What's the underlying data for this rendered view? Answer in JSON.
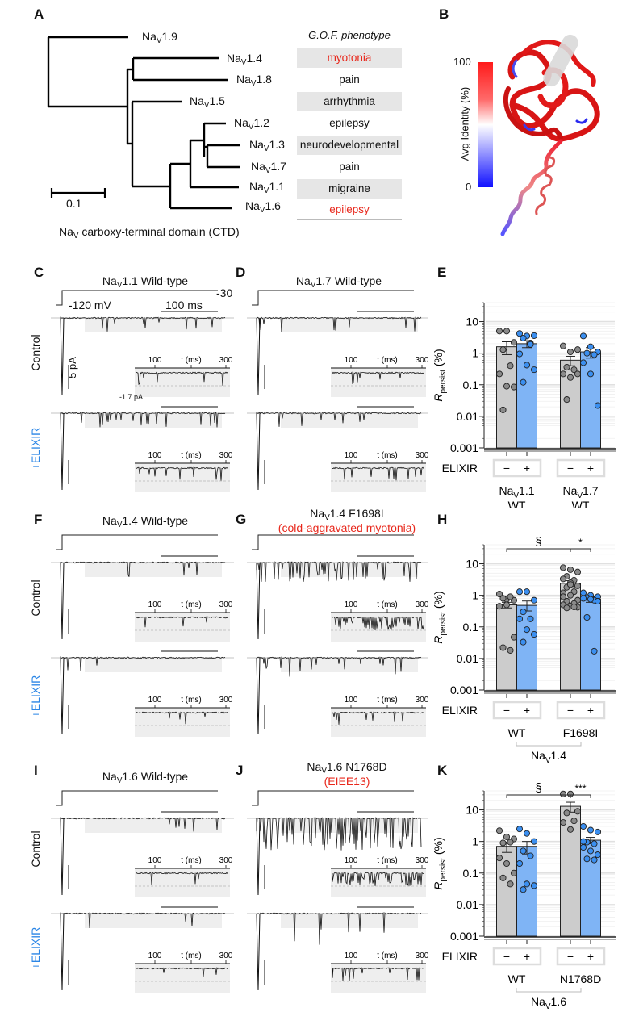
{
  "panel_labels": {
    "A": "A",
    "B": "B",
    "C": "C",
    "D": "D",
    "E": "E",
    "F": "F",
    "G": "G",
    "H": "H",
    "I": "I",
    "J": "J",
    "K": "K"
  },
  "panelA": {
    "tree_leaves": [
      {
        "name": "Na",
        "sub": "V",
        "suffix": "1.9"
      },
      {
        "name": "Na",
        "sub": "V",
        "suffix": "1.4"
      },
      {
        "name": "Na",
        "sub": "V",
        "suffix": "1.8"
      },
      {
        "name": "Na",
        "sub": "V",
        "suffix": "1.5"
      },
      {
        "name": "Na",
        "sub": "V",
        "suffix": "1.2"
      },
      {
        "name": "Na",
        "sub": "V",
        "suffix": "1.3"
      },
      {
        "name": "Na",
        "sub": "V",
        "suffix": "1.7"
      },
      {
        "name": "Na",
        "sub": "V",
        "suffix": "1.1"
      },
      {
        "name": "Na",
        "sub": "V",
        "suffix": "1.6"
      }
    ],
    "scale_bar_label": "0.1",
    "caption_pre": "Na",
    "caption_sub": "V",
    "caption_post": " carboxy-terminal domain (CTD)",
    "phenotype_header": "G.O.F. phenotype",
    "phenotypes": [
      {
        "label": "myotonia",
        "highlight": true
      },
      {
        "label": "pain",
        "highlight": false
      },
      {
        "label": "arrhythmia",
        "highlight": false
      },
      {
        "label": "epilepsy",
        "highlight": false
      },
      {
        "label": "neurodevelopmental",
        "highlight": false
      },
      {
        "label": "pain",
        "highlight": false
      },
      {
        "label": "migraine",
        "highlight": false
      },
      {
        "label": "epilepsy",
        "highlight": true
      }
    ],
    "highlight_color": "#e8271b"
  },
  "panelB": {
    "colorbar_label": "Avg Identity (%)",
    "colorbar_max": "100",
    "colorbar_min": "0",
    "colors": {
      "high": "#ff1a1a",
      "mid": "#ffffff",
      "low": "#1010ff"
    }
  },
  "traces": {
    "row_control": "Control",
    "row_elixir": "+ELIXIR",
    "inset_ticks": [
      "100",
      "t (ms)",
      "300"
    ],
    "voltage_start": "-120 mV",
    "voltage_end": "-30",
    "time_scale": "100 ms",
    "current_scale": "5 pA",
    "inset_level": "-1.7 pA",
    "C": {
      "title_pre": "Na",
      "title_sub": "V",
      "title_post": "1.1 Wild-type",
      "subtitle": ""
    },
    "D": {
      "title_pre": "Na",
      "title_sub": "V",
      "title_post": "1.7 Wild-type",
      "subtitle": ""
    },
    "F": {
      "title_pre": "Na",
      "title_sub": "V",
      "title_post": "1.4 Wild-type",
      "subtitle": ""
    },
    "G": {
      "title_pre": "Na",
      "title_sub": "V",
      "title_post": "1.4 F1698I",
      "subtitle": "(cold-aggravated myotonia)"
    },
    "I": {
      "title_pre": "Na",
      "title_sub": "V",
      "title_post": "1.6 Wild-type",
      "subtitle": ""
    },
    "J": {
      "title_pre": "Na",
      "title_sub": "V",
      "title_post": "1.6 N1768D",
      "subtitle": "(EIEE13)"
    }
  },
  "chart_data": [
    {
      "id": "E",
      "type": "bar",
      "scale": "log",
      "ylabel": "R_persist (%)",
      "ylim": [
        0.001,
        40
      ],
      "yticks": [
        "0.001",
        "0.01",
        "0.1",
        "1",
        "10"
      ],
      "xrow_label": "ELIXIR",
      "conditions": [
        "−",
        "+"
      ],
      "groups": [
        {
          "label_pre": "Na",
          "label_sub": "V",
          "label_post": "1.1",
          "label2": "WT",
          "bars": [
            {
              "condition": "−",
              "mean": 1.6,
              "sem": [
                0.9,
                2.3
              ],
              "points": [
                5,
                5,
                2.2,
                1.3,
                0.4,
                0.22,
                0.09,
                0.085,
                0.016
              ]
            },
            {
              "condition": "+",
              "mean": 2.0,
              "sem": [
                1.5,
                2.5
              ],
              "points": [
                4.2,
                3.5,
                3.6,
                3.0,
                2.1,
                0.95,
                0.42,
                0.3,
                0.12,
                1.9
              ]
            }
          ]
        },
        {
          "label_pre": "Na",
          "label_sub": "V",
          "label_post": "1.7",
          "label2": "WT",
          "bars": [
            {
              "condition": "−",
              "mean": 0.6,
              "sem": [
                0.4,
                0.8
              ],
              "points": [
                1.7,
                1.1,
                1.3,
                0.36,
                0.3,
                0.22,
                0.17,
                0.22,
                0.034
              ]
            },
            {
              "condition": "+",
              "mean": 1.1,
              "sem": [
                0.7,
                1.5
              ],
              "points": [
                3.5,
                1.6,
                1.1,
                1.0,
                0.9,
                0.5,
                0.22,
                0.022
              ]
            }
          ]
        }
      ],
      "colors": {
        "control": "#cccccc",
        "elixir": "#7fb4f5",
        "dot_control": "#8a8a8a",
        "dot_elixir": "#3b8ff0"
      },
      "significance": []
    },
    {
      "id": "H",
      "type": "bar",
      "scale": "log",
      "ylabel": "R_persist (%)",
      "ylim": [
        0.001,
        40
      ],
      "yticks": [
        "0.001",
        "0.01",
        "0.1",
        "1",
        "10"
      ],
      "xrow_label": "ELIXIR",
      "conditions": [
        "−",
        "+"
      ],
      "groups": [
        {
          "label_pre": "",
          "label_sub": "",
          "label_post": "WT",
          "label2": "",
          "bars": [
            {
              "condition": "−",
              "mean": 0.5,
              "sem": [
                0.4,
                0.6
              ],
              "points": [
                1.1,
                0.75,
                0.7,
                0.8,
                0.9,
                0.45,
                0.5,
                0.047,
                0.022,
                0.018
              ]
            },
            {
              "condition": "+",
              "mean": 0.48,
              "sem": [
                0.32,
                0.66
              ],
              "points": [
                1.3,
                1.3,
                0.7,
                0.3,
                0.18,
                0.18,
                0.082,
                0.058,
                0.033
              ]
            }
          ]
        },
        {
          "label_pre": "",
          "label_sub": "",
          "label_post": "F1698I",
          "label2": "",
          "bars": [
            {
              "condition": "−",
              "mean": 2.4,
              "sem": [
                1.9,
                2.9
              ],
              "points": [
                7.5,
                6.5,
                5.5,
                4.0,
                3.0,
                3.3,
                2.5,
                2.0,
                1.8,
                1.3,
                1.2,
                1.0,
                0.7,
                0.65,
                0.55,
                0.5,
                0.45,
                0.42,
                0.4,
                0.43,
                0.9,
                2.2
              ]
            },
            {
              "condition": "+",
              "mean": 0.75,
              "sem": [
                0.6,
                0.9
              ],
              "points": [
                1.2,
                1.0,
                0.9,
                0.85,
                0.7,
                0.8,
                0.75,
                0.65,
                0.2,
                0.017
              ]
            }
          ]
        }
      ],
      "group_caption_pre": "Na",
      "group_caption_sub": "V",
      "group_caption_post": "1.4",
      "colors": {
        "control": "#cccccc",
        "elixir": "#7fb4f5",
        "dot_control": "#8a8a8a",
        "dot_elixir": "#3b8ff0"
      },
      "significance": [
        {
          "label": "§",
          "from": [
            0,
            0
          ],
          "to": [
            1,
            0
          ]
        },
        {
          "label": "*",
          "from": [
            1,
            0
          ],
          "to": [
            1,
            1
          ]
        }
      ]
    },
    {
      "id": "K",
      "type": "bar",
      "scale": "log",
      "ylabel": "R_persist (%)",
      "ylim": [
        0.001,
        40
      ],
      "yticks": [
        "0.001",
        "0.01",
        "0.1",
        "1",
        "10"
      ],
      "xrow_label": "ELIXIR",
      "conditions": [
        "−",
        "+"
      ],
      "groups": [
        {
          "label_pre": "",
          "label_sub": "",
          "label_post": "WT",
          "label2": "",
          "bars": [
            {
              "condition": "−",
              "mean": 0.7,
              "sem": [
                0.45,
                0.95
              ],
              "points": [
                2.2,
                1.4,
                1.2,
                0.9,
                0.95,
                0.3,
                0.2,
                0.1,
                0.07,
                0.045
              ]
            },
            {
              "condition": "+",
              "mean": 0.7,
              "sem": [
                0.4,
                1.0
              ],
              "points": [
                2.5,
                1.8,
                1.0,
                0.5,
                0.35,
                0.2,
                0.045,
                0.04,
                0.03
              ]
            }
          ]
        },
        {
          "label_pre": "",
          "label_sub": "",
          "label_post": "N1768D",
          "label2": "",
          "bars": [
            {
              "condition": "−",
              "mean": 13,
              "sem": [
                8.5,
                17.5
              ],
              "points": [
                32,
                32,
                9,
                8,
                4.5,
                4,
                2.4
              ]
            },
            {
              "condition": "+",
              "mean": 1.1,
              "sem": [
                0.85,
                1.35
              ],
              "points": [
                3,
                2.3,
                2.0,
                0.95,
                0.85,
                0.65,
                0.5,
                0.38,
                0.28,
                0.26,
                1.0
              ]
            }
          ]
        }
      ],
      "group_caption_pre": "Na",
      "group_caption_sub": "V",
      "group_caption_post": "1.6",
      "colors": {
        "control": "#cccccc",
        "elixir": "#7fb4f5",
        "dot_control": "#8a8a8a",
        "dot_elixir": "#3b8ff0"
      },
      "significance": [
        {
          "label": "§",
          "from": [
            0,
            0
          ],
          "to": [
            1,
            0
          ]
        },
        {
          "label": "***",
          "from": [
            1,
            0
          ],
          "to": [
            1,
            1
          ]
        }
      ]
    }
  ]
}
